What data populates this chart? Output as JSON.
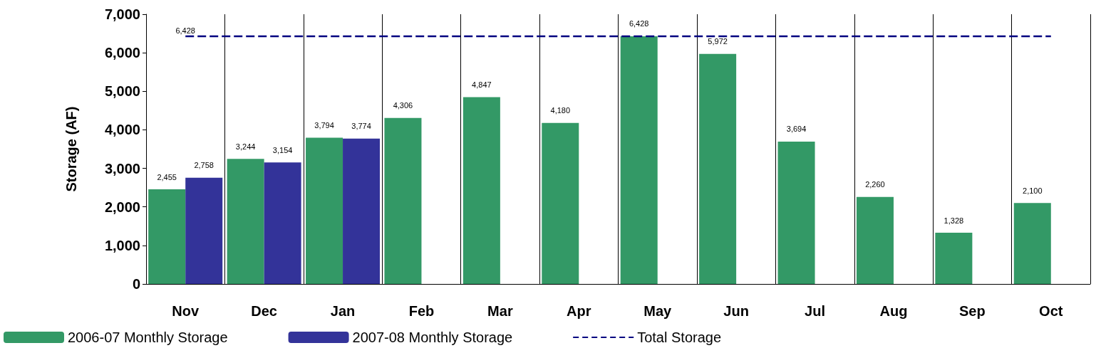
{
  "chart_data": {
    "type": "bar",
    "ylabel": "Storage (AF)",
    "categories": [
      "Nov",
      "Dec",
      "Jan",
      "Feb",
      "Mar",
      "Apr",
      "May",
      "Jun",
      "Jul",
      "Aug",
      "Sep",
      "Oct"
    ],
    "series": [
      {
        "name": "2006-07 Monthly Storage",
        "color": "#339966",
        "values": [
          2455,
          3244,
          3794,
          4306,
          4847,
          4180,
          6428,
          5972,
          3694,
          2260,
          1328,
          2100
        ],
        "value_labels": [
          "2,455",
          "3,244",
          "3,794",
          "4,306",
          "4,847",
          "4,180",
          "6,428",
          "5,972",
          "3,694",
          "2,260",
          "1,328",
          "2,100"
        ]
      },
      {
        "name": "2007-08 Monthly Storage",
        "color": "#333399",
        "values": [
          2758,
          3154,
          3774,
          null,
          null,
          null,
          null,
          null,
          null,
          null,
          null,
          null
        ],
        "value_labels": [
          "2,758",
          "3,154",
          "3,774",
          null,
          null,
          null,
          null,
          null,
          null,
          null,
          null,
          null
        ]
      },
      {
        "name": "Total Storage",
        "type": "line",
        "color": "#000080",
        "line_style": "dashed",
        "marker": "none",
        "values": [
          6428,
          6428,
          6428,
          6428,
          6428,
          6428,
          6428,
          6428,
          6428,
          6428,
          6428,
          6428
        ],
        "value_labels": [
          "6,428",
          null,
          null,
          null,
          null,
          null,
          null,
          null,
          null,
          null,
          null,
          null
        ]
      }
    ],
    "ylim": [
      0,
      7000
    ],
    "yticks": [
      {
        "value": 0,
        "label": "0"
      },
      {
        "value": 1000,
        "label": "1,000"
      },
      {
        "value": 2000,
        "label": "2,000"
      },
      {
        "value": 3000,
        "label": "3,000"
      },
      {
        "value": 4000,
        "label": "4,000"
      },
      {
        "value": 5000,
        "label": "5,000"
      },
      {
        "value": 6000,
        "label": "6,000"
      },
      {
        "value": 7000,
        "label": "7,000"
      }
    ],
    "grid": "x",
    "legend": "bottom"
  }
}
